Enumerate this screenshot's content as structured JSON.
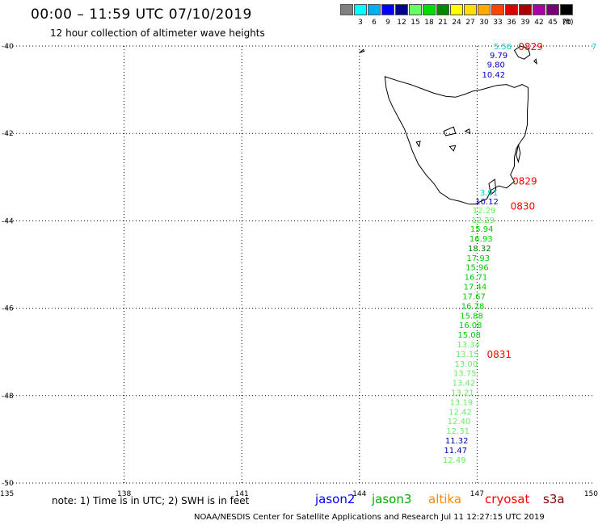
{
  "header": {
    "title": "00:00 – 11:59 UTC 07/10/2019",
    "subtitle": "12 hour collection of altimeter wave heights"
  },
  "legend": {
    "unit": "(ft)",
    "items": [
      {
        "label": "",
        "color": "#808080"
      },
      {
        "label": "3",
        "color": "#00ffff"
      },
      {
        "label": "6",
        "color": "#00b0f0"
      },
      {
        "label": "9",
        "color": "#0000ff"
      },
      {
        "label": "12",
        "color": "#00008b"
      },
      {
        "label": "15",
        "color": "#66ff66"
      },
      {
        "label": "18",
        "color": "#00dd00"
      },
      {
        "label": "21",
        "color": "#008800"
      },
      {
        "label": "24",
        "color": "#ffff00"
      },
      {
        "label": "27",
        "color": "#ffdd00"
      },
      {
        "label": "30",
        "color": "#ffaa00"
      },
      {
        "label": "33",
        "color": "#ff4400"
      },
      {
        "label": "36",
        "color": "#dd0000"
      },
      {
        "label": "39",
        "color": "#aa0000"
      },
      {
        "label": "42",
        "color": "#aa00aa"
      },
      {
        "label": "45",
        "color": "#770077"
      },
      {
        "label": "70",
        "color": "#000000"
      }
    ]
  },
  "map": {
    "lon_range": [
      135,
      150
    ],
    "lat_range": [
      -50,
      -40
    ],
    "lon_ticks": [
      "135",
      "138",
      "141",
      "144",
      "147",
      "150"
    ],
    "lat_ticks": [
      "-40",
      "-42",
      "-44",
      "-46",
      "-48",
      "-50"
    ],
    "grid": true
  },
  "track": {
    "points": [
      {
        "v": "5.56",
        "lat": -40.0,
        "lon": 147.65,
        "color": "#00cccc"
      },
      {
        "v": "9.79",
        "lat": -40.2,
        "lon": 147.55,
        "color": "#0000cc"
      },
      {
        "v": "9.80",
        "lat": -40.42,
        "lon": 147.48,
        "color": "#0000cc"
      },
      {
        "v": "10.42",
        "lat": -40.65,
        "lon": 147.42,
        "color": "#0000cc"
      },
      {
        "v": "3.91",
        "lat": -43.35,
        "lon": 147.3,
        "color": "#00cccc"
      },
      {
        "v": "10.12",
        "lat": -43.55,
        "lon": 147.25,
        "color": "#0000cc"
      },
      {
        "v": "12.29",
        "lat": -43.75,
        "lon": 147.18,
        "color": "#66ee66"
      },
      {
        "v": "12.29",
        "lat": -43.97,
        "lon": 147.15,
        "color": "#66ee66"
      },
      {
        "v": "15.94",
        "lat": -44.18,
        "lon": 147.12,
        "color": "#00cc00"
      },
      {
        "v": "16.93",
        "lat": -44.4,
        "lon": 147.1,
        "color": "#00cc00"
      },
      {
        "v": "18.32",
        "lat": -44.62,
        "lon": 147.06,
        "color": "#007700"
      },
      {
        "v": "17.93",
        "lat": -44.84,
        "lon": 147.03,
        "color": "#00cc00"
      },
      {
        "v": "15.96",
        "lat": -45.06,
        "lon": 147.0,
        "color": "#00cc00"
      },
      {
        "v": "16.71",
        "lat": -45.28,
        "lon": 146.97,
        "color": "#00cc00"
      },
      {
        "v": "17.44",
        "lat": -45.5,
        "lon": 146.95,
        "color": "#00cc00"
      },
      {
        "v": "17.67",
        "lat": -45.72,
        "lon": 146.92,
        "color": "#00cc00"
      },
      {
        "v": "16.78",
        "lat": -45.94,
        "lon": 146.89,
        "color": "#00cc00"
      },
      {
        "v": "15.88",
        "lat": -46.16,
        "lon": 146.86,
        "color": "#00cc00"
      },
      {
        "v": "16.08",
        "lat": -46.38,
        "lon": 146.83,
        "color": "#00cc00"
      },
      {
        "v": "15.08",
        "lat": -46.6,
        "lon": 146.8,
        "color": "#00cc00"
      },
      {
        "v": "13.34",
        "lat": -46.82,
        "lon": 146.78,
        "color": "#66ee66"
      },
      {
        "v": "13.15",
        "lat": -47.04,
        "lon": 146.75,
        "color": "#66ee66"
      },
      {
        "v": "13.00",
        "lat": -47.26,
        "lon": 146.72,
        "color": "#66ee66"
      },
      {
        "v": "13.75",
        "lat": -47.48,
        "lon": 146.69,
        "color": "#66ee66"
      },
      {
        "v": "13.42",
        "lat": -47.7,
        "lon": 146.66,
        "color": "#66ee66"
      },
      {
        "v": "13.21",
        "lat": -47.92,
        "lon": 146.63,
        "color": "#66ee66"
      },
      {
        "v": "13.19",
        "lat": -48.14,
        "lon": 146.6,
        "color": "#66ee66"
      },
      {
        "v": "12.42",
        "lat": -48.36,
        "lon": 146.57,
        "color": "#66ee66"
      },
      {
        "v": "12.40",
        "lat": -48.58,
        "lon": 146.54,
        "color": "#66ee66"
      },
      {
        "v": "12.31",
        "lat": -48.8,
        "lon": 146.51,
        "color": "#66ee66"
      },
      {
        "v": "11.32",
        "lat": -49.02,
        "lon": 146.48,
        "color": "#0000aa"
      },
      {
        "v": "11.47",
        "lat": -49.24,
        "lon": 146.45,
        "color": "#0000aa"
      },
      {
        "v": "12.49",
        "lat": -49.46,
        "lon": 146.42,
        "color": "#66ee66"
      }
    ],
    "times": [
      {
        "label": "0829",
        "lat": -40.0,
        "lon": 148.05
      },
      {
        "label": "0829",
        "lat": -43.08,
        "lon": 147.9
      },
      {
        "label": "0830",
        "lat": -43.65,
        "lon": 147.85
      },
      {
        "label": "0831",
        "lat": -47.04,
        "lon": 147.25
      }
    ],
    "edge_value": {
      "label": "7",
      "lat": -40.0,
      "lon": 150.05
    }
  },
  "tasmania_outline": [
    [
      144.65,
      -40.7
    ],
    [
      145.0,
      -40.8
    ],
    [
      145.3,
      -40.88
    ],
    [
      145.6,
      -40.98
    ],
    [
      145.9,
      -41.08
    ],
    [
      146.2,
      -41.15
    ],
    [
      146.45,
      -41.17
    ],
    [
      146.7,
      -41.1
    ],
    [
      146.9,
      -41.03
    ],
    [
      147.1,
      -41.0
    ],
    [
      147.3,
      -40.95
    ],
    [
      147.5,
      -40.9
    ],
    [
      147.75,
      -40.88
    ],
    [
      147.95,
      -40.95
    ],
    [
      148.15,
      -40.88
    ],
    [
      148.3,
      -40.95
    ],
    [
      148.3,
      -41.2
    ],
    [
      148.28,
      -41.5
    ],
    [
      148.28,
      -41.8
    ],
    [
      148.22,
      -42.05
    ],
    [
      148.1,
      -42.2
    ],
    [
      148.0,
      -42.35
    ],
    [
      147.95,
      -42.55
    ],
    [
      147.95,
      -42.75
    ],
    [
      147.85,
      -42.95
    ],
    [
      147.95,
      -43.1
    ],
    [
      147.75,
      -43.25
    ],
    [
      147.55,
      -43.2
    ],
    [
      147.35,
      -43.3
    ],
    [
      147.25,
      -43.5
    ],
    [
      147.1,
      -43.55
    ],
    [
      146.95,
      -43.62
    ],
    [
      146.8,
      -43.62
    ],
    [
      146.55,
      -43.55
    ],
    [
      146.3,
      -43.5
    ],
    [
      146.05,
      -43.35
    ],
    [
      145.9,
      -43.15
    ],
    [
      145.7,
      -42.95
    ],
    [
      145.5,
      -42.7
    ],
    [
      145.35,
      -42.4
    ],
    [
      145.25,
      -42.15
    ],
    [
      145.15,
      -41.9
    ],
    [
      145.0,
      -41.65
    ],
    [
      144.85,
      -41.4
    ],
    [
      144.75,
      -41.2
    ],
    [
      144.68,
      -40.95
    ],
    [
      144.65,
      -40.7
    ]
  ],
  "islands": [
    [
      [
        144.0,
        -40.15
      ],
      [
        144.1,
        -40.08
      ],
      [
        144.12,
        -40.12
      ],
      [
        144.0,
        -40.15
      ]
    ],
    [
      [
        147.95,
        -40.1
      ],
      [
        148.1,
        -40.0
      ],
      [
        148.3,
        -40.05
      ],
      [
        148.35,
        -40.2
      ],
      [
        148.2,
        -40.3
      ],
      [
        148.05,
        -40.25
      ],
      [
        147.95,
        -40.1
      ]
    ],
    [
      [
        148.45,
        -40.35
      ],
      [
        148.5,
        -40.3
      ],
      [
        148.52,
        -40.4
      ],
      [
        148.45,
        -40.35
      ]
    ],
    [
      [
        148.05,
        -42.25
      ],
      [
        148.1,
        -42.45
      ],
      [
        148.05,
        -42.65
      ],
      [
        148.0,
        -42.5
      ],
      [
        148.05,
        -42.25
      ]
    ],
    [
      [
        147.3,
        -43.15
      ],
      [
        147.45,
        -43.05
      ],
      [
        147.48,
        -43.3
      ],
      [
        147.35,
        -43.4
      ],
      [
        147.3,
        -43.15
      ]
    ],
    [
      [
        146.15,
        -41.95
      ],
      [
        146.4,
        -41.85
      ],
      [
        146.45,
        -42.0
      ],
      [
        146.2,
        -42.05
      ],
      [
        146.15,
        -41.95
      ]
    ],
    [
      [
        146.7,
        -41.95
      ],
      [
        146.8,
        -41.9
      ],
      [
        146.82,
        -42.0
      ],
      [
        146.7,
        -41.95
      ]
    ],
    [
      [
        146.3,
        -42.3
      ],
      [
        146.45,
        -42.28
      ],
      [
        146.4,
        -42.4
      ],
      [
        146.3,
        -42.3
      ]
    ],
    [
      [
        145.45,
        -42.2
      ],
      [
        145.55,
        -42.18
      ],
      [
        145.52,
        -42.3
      ],
      [
        145.45,
        -42.2
      ]
    ]
  ],
  "footer": {
    "note": "note: 1) Time is in UTC; 2) SWH is in feet",
    "satellites": [
      {
        "name": "jason2",
        "color": "#0000ff"
      },
      {
        "name": "jason3",
        "color": "#00aa00"
      },
      {
        "name": "altika",
        "color": "#ff8800"
      },
      {
        "name": "cryosat",
        "color": "#ff0000"
      },
      {
        "name": "s3a",
        "color": "#880000"
      }
    ],
    "credit": "NOAA/NESDIS Center for Satellite Applications and Research    Jul 11 12:27:15 UTC 2019"
  }
}
